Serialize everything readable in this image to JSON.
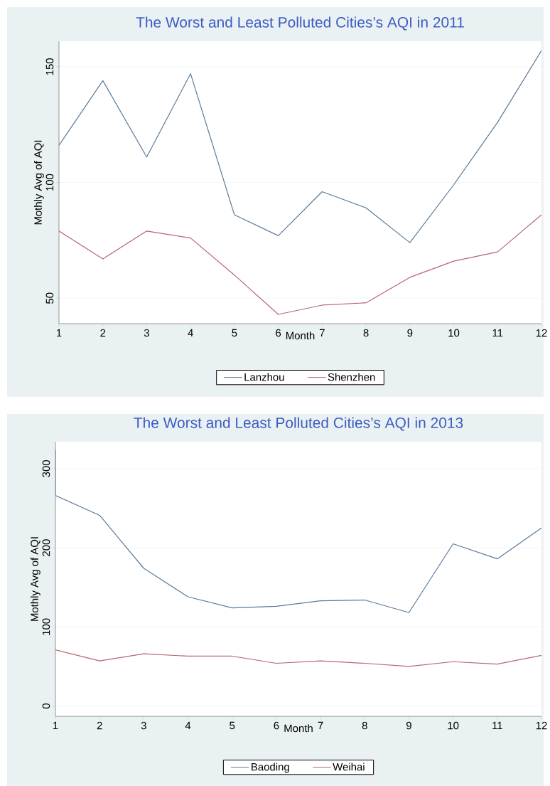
{
  "chart_data": [
    {
      "type": "line",
      "title": "The Worst and Least Polluted Cities’s AQI in 2011",
      "xlabel": "Month",
      "ylabel": "Mothly Avg of AQI",
      "x": [
        1,
        2,
        3,
        4,
        5,
        6,
        7,
        8,
        9,
        10,
        11,
        12
      ],
      "series": [
        {
          "name": "Lanzhou",
          "color": "#5b7a99",
          "values": [
            116,
            144,
            111,
            147,
            86,
            77,
            96,
            89,
            74,
            99,
            126,
            157
          ]
        },
        {
          "name": "Shenzhen",
          "color": "#b5666e",
          "values": [
            79,
            67,
            79,
            76,
            60,
            43,
            47,
            48,
            59,
            66,
            70,
            86
          ]
        }
      ],
      "xlim": [
        1,
        12
      ],
      "xticks": [
        1,
        2,
        3,
        4,
        5,
        6,
        7,
        8,
        9,
        10,
        11,
        12
      ],
      "ylim": [
        39,
        161
      ],
      "yticks": [
        50,
        100,
        150
      ],
      "grid": "y",
      "legend": "bottom"
    },
    {
      "type": "line",
      "title": "The Worst and Least Polluted Cities’s AQI in 2013",
      "xlabel": "Month",
      "ylabel": "Mothly Avg of AQI",
      "x": [
        1,
        2,
        3,
        4,
        5,
        6,
        7,
        8,
        9,
        10,
        11,
        12
      ],
      "series": [
        {
          "name": "Baoding",
          "color": "#5b7a99",
          "x": [
            1,
            1,
            2,
            3,
            4,
            5,
            6,
            7,
            8,
            9,
            10,
            11,
            12
          ],
          "values": [
            324,
            266,
            241,
            174,
            138,
            124,
            126,
            133,
            134,
            118,
            205,
            186,
            225
          ]
        },
        {
          "name": "Weihai",
          "color": "#b5666e",
          "values": [
            71,
            57,
            66,
            63,
            63,
            54,
            57,
            54,
            50,
            56,
            53,
            64
          ]
        }
      ],
      "xlim": [
        1,
        12
      ],
      "xticks": [
        1,
        2,
        3,
        4,
        5,
        6,
        7,
        8,
        9,
        10,
        11,
        12
      ],
      "ylim": [
        -13,
        334
      ],
      "yticks": [
        0,
        100,
        200,
        300
      ],
      "grid": "y",
      "legend": "bottom"
    }
  ]
}
